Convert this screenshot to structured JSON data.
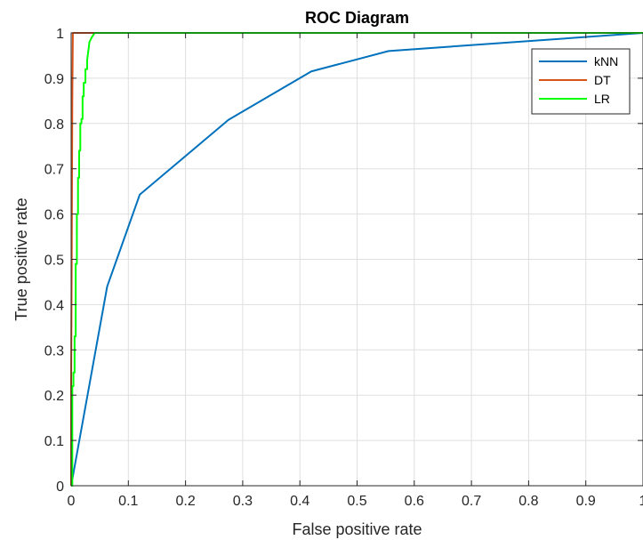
{
  "chart_data": {
    "type": "line",
    "title": "ROC Diagram",
    "xlabel": "False positive rate",
    "ylabel": "True positive rate",
    "xlim": [
      0,
      1
    ],
    "ylim": [
      0,
      1
    ],
    "xticks": [
      "0",
      "0.1",
      "0.2",
      "0.3",
      "0.4",
      "0.5",
      "0.6",
      "0.7",
      "0.8",
      "0.9",
      "1"
    ],
    "yticks": [
      "0",
      "0.1",
      "0.2",
      "0.3",
      "0.4",
      "0.5",
      "0.6",
      "0.7",
      "0.8",
      "0.9",
      "1"
    ],
    "grid": true,
    "legend_position": "top-right",
    "series": [
      {
        "name": "kNN",
        "color": "#0072BD",
        "x": [
          0,
          0.063,
          0.12,
          0.275,
          0.42,
          0.555,
          1.0
        ],
        "y": [
          0,
          0.44,
          0.643,
          0.808,
          0.915,
          0.96,
          1.0
        ]
      },
      {
        "name": "DT",
        "color": "#D95319",
        "x": [
          0,
          0,
          0.001,
          0.002,
          0.003,
          1.0
        ],
        "y": [
          0,
          0.22,
          0.5,
          0.85,
          1.0,
          1.0
        ]
      },
      {
        "name": "LR",
        "color": "#00FF00",
        "x": [
          0,
          0.002,
          0.002,
          0.004,
          0.004,
          0.006,
          0.006,
          0.008,
          0.008,
          0.01,
          0.01,
          0.012,
          0.012,
          0.014,
          0.014,
          0.016,
          0.016,
          0.018,
          0.018,
          0.02,
          0.02,
          0.022,
          0.022,
          0.025,
          0.025,
          0.028,
          0.028,
          0.032,
          0.036,
          0.041,
          0.045,
          1.0
        ],
        "y": [
          0,
          0.0,
          0.22,
          0.22,
          0.25,
          0.25,
          0.33,
          0.33,
          0.49,
          0.49,
          0.6,
          0.6,
          0.68,
          0.68,
          0.74,
          0.74,
          0.8,
          0.8,
          0.81,
          0.81,
          0.86,
          0.86,
          0.89,
          0.89,
          0.92,
          0.92,
          0.94,
          0.98,
          0.99,
          1.0,
          1.0,
          1.0
        ]
      }
    ]
  }
}
